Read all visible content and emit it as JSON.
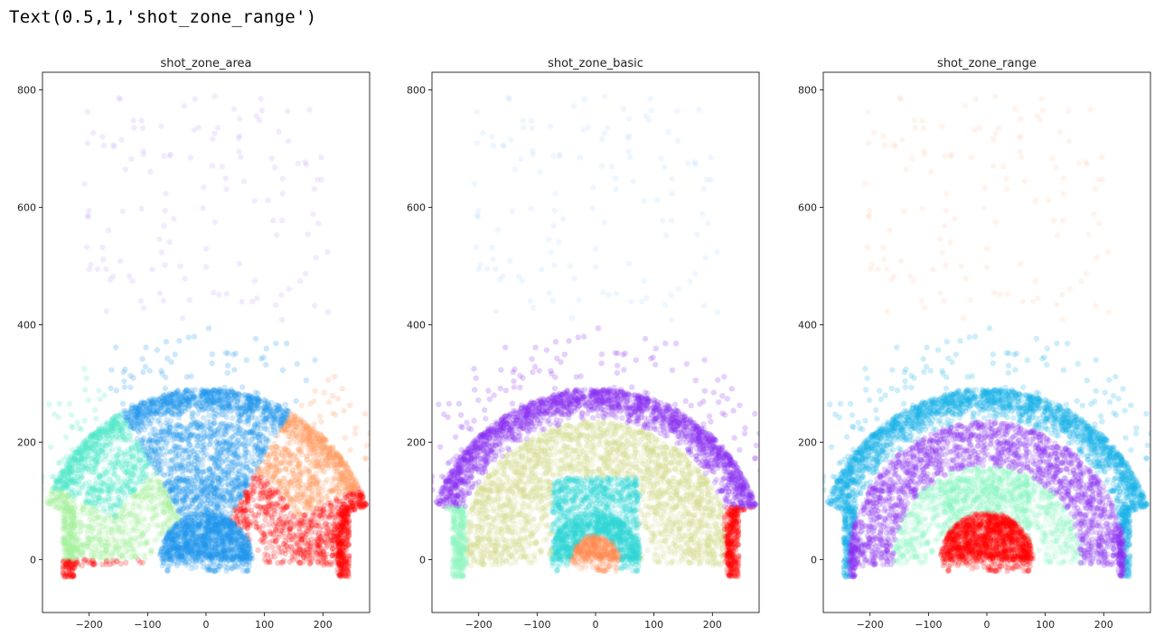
{
  "output_text": "Text(0.5,1,'shot_zone_range')",
  "chart_data": [
    {
      "type": "scatter",
      "title": "shot_zone_area",
      "xlabel": "",
      "ylabel": "",
      "xlim": [
        -280,
        280
      ],
      "ylim": [
        -90,
        830
      ],
      "xticks": [
        -200,
        -100,
        0,
        100,
        200
      ],
      "yticks": [
        0,
        200,
        400,
        600,
        800
      ],
      "grid": false,
      "colors": {
        "Center(C)": "#1f96ee",
        "Left Side Center(LC)": "#4ee8c8",
        "Left Side(L)": "#a6f09a",
        "Right Side Center(RC)": "#ff9b5e",
        "Right Side(R)": "#ff0000",
        "Back Court(BC)": "#c9a6f5"
      }
    },
    {
      "type": "scatter",
      "title": "shot_zone_basic",
      "xlabel": "",
      "ylabel": "",
      "xlim": [
        -280,
        280
      ],
      "ylim": [
        -90,
        830
      ],
      "xticks": [
        -200,
        -100,
        0,
        100,
        200
      ],
      "yticks": [
        0,
        200,
        400,
        600,
        800
      ],
      "grid": false,
      "colors": {
        "Mid-Range": "#d2db8a",
        "Above the Break 3": "#8a2ef0",
        "Restricted Area": "#ff8a4d",
        "In The Paint (Non-RA)": "#2fd6d8",
        "Left Corner 3": "#8cf5c0",
        "Right Corner 3": "#ff0000",
        "Backcourt": "#b0d6ff"
      }
    },
    {
      "type": "scatter",
      "title": "shot_zone_range",
      "xlabel": "",
      "ylabel": "",
      "xlim": [
        -280,
        280
      ],
      "ylim": [
        -90,
        830
      ],
      "xticks": [
        -200,
        -100,
        0,
        100,
        200
      ],
      "yticks": [
        0,
        200,
        400,
        600,
        800
      ],
      "grid": false,
      "colors": {
        "Less Than 8 ft.": "#ff0000",
        "8-16 ft.": "#86f5c0",
        "16-24 ft.": "#8a2ef0",
        "24+ ft.": "#15b0e6",
        "Back Court Shot": "#ffcfae"
      }
    }
  ]
}
